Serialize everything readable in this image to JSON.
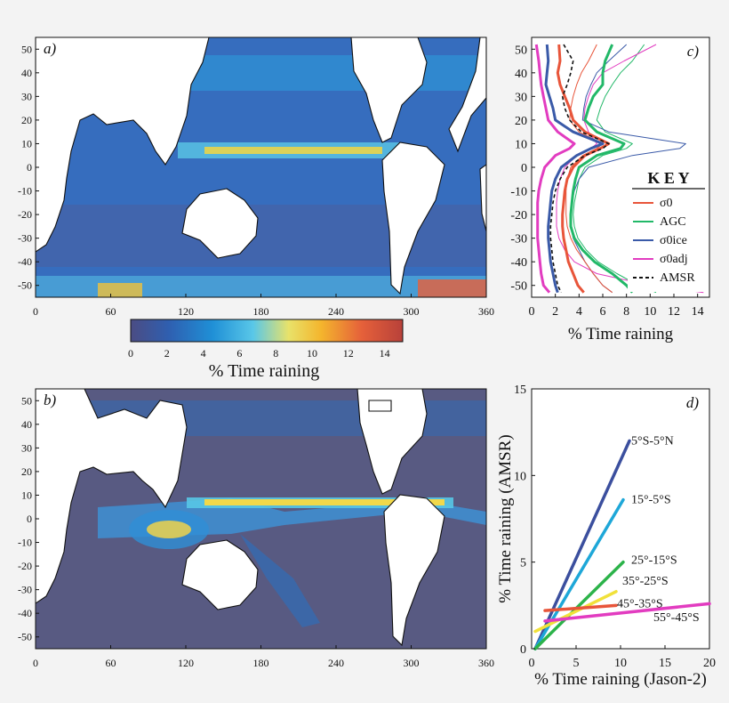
{
  "figure": {
    "panels": [
      {
        "label": "a)",
        "type": "heatmap",
        "x_ticks": [
          "0",
          "60",
          "120",
          "180",
          "240",
          "300",
          "360"
        ],
        "y_ticks": [
          "50",
          "40",
          "30",
          "20",
          "10",
          "0",
          "-10",
          "-20",
          "-30",
          "-40",
          "-50"
        ],
        "xlim": [
          0,
          360
        ],
        "ylim": [
          -55,
          55
        ]
      },
      {
        "label": "b)",
        "type": "heatmap",
        "x_ticks": [
          "0",
          "60",
          "120",
          "180",
          "240",
          "300",
          "360"
        ],
        "y_ticks": [
          "50",
          "40",
          "30",
          "20",
          "10",
          "0",
          "-10",
          "-20",
          "-30",
          "-40",
          "-50"
        ],
        "xlim": [
          0,
          360
        ],
        "ylim": [
          -55,
          55
        ]
      },
      {
        "label": "c)"
      },
      {
        "label": "d)"
      }
    ],
    "colorbar": {
      "ticks": [
        "0",
        "2",
        "4",
        "6",
        "8",
        "10",
        "12",
        "14"
      ],
      "label": "% Time raining",
      "range": [
        0,
        15
      ],
      "colors": [
        "#4b4c83",
        "#2f5fb0",
        "#1f8fd6",
        "#59c7e8",
        "#e8e26a",
        "#f4b52d",
        "#e5603a",
        "#b8413a"
      ]
    }
  },
  "chart_data": [
    {
      "type": "line",
      "panel": "c)",
      "xlabel": "% Time raining",
      "ylabel": "",
      "xlim": [
        0,
        15
      ],
      "ylim": [
        -55,
        55
      ],
      "x_ticks": [
        "0",
        "2",
        "4",
        "6",
        "8",
        "10",
        "12",
        "14"
      ],
      "y_ticks": [
        "50",
        "40",
        "30",
        "20",
        "10",
        "0",
        "-10",
        "-20",
        "-30",
        "-40",
        "-50"
      ],
      "legend": {
        "title": "K E Y",
        "position": "right",
        "entries": [
          {
            "label": "σ0",
            "color": "#e8553a"
          },
          {
            "label": "AGC",
            "color": "#22b868"
          },
          {
            "label": "σ0ice",
            "color": "#3a5aa8"
          },
          {
            "label": "σ0adj",
            "color": "#e23cc0"
          },
          {
            "label": "AMSR",
            "color": "#111111",
            "dash": true
          }
        ]
      },
      "y": [
        52,
        45,
        40,
        35,
        30,
        25,
        20,
        15,
        10,
        8,
        5,
        0,
        -5,
        -10,
        -15,
        -20,
        -25,
        -30,
        -35,
        -40,
        -45,
        -50,
        -53
      ],
      "series": [
        {
          "name": "σ0",
          "color": "#e8553a",
          "values": [
            2.3,
            2.4,
            2.2,
            2.4,
            2.8,
            3.2,
            3.5,
            4.5,
            6.5,
            5.8,
            4.5,
            3.5,
            3.0,
            2.8,
            2.7,
            2.6,
            2.6,
            2.7,
            2.9,
            3.1,
            3.5,
            3.9,
            4.4
          ],
          "width": 3
        },
        {
          "name": "AGC",
          "color": "#22b868",
          "values": [
            6.8,
            6.2,
            6.0,
            6.0,
            5.2,
            4.8,
            4.5,
            5.5,
            7.8,
            7.5,
            5.5,
            4.0,
            3.7,
            3.5,
            3.4,
            3.3,
            3.3,
            3.6,
            4.3,
            5.3,
            6.8,
            8.0,
            8.5
          ],
          "width": 3
        },
        {
          "name": "σ0ice",
          "color": "#3a5aa8",
          "values": [
            1.3,
            1.4,
            1.3,
            1.2,
            1.5,
            1.8,
            2.0,
            3.5,
            6.0,
            5.0,
            3.8,
            2.5,
            2.0,
            1.7,
            1.6,
            1.5,
            1.4,
            1.4,
            1.5,
            1.6,
            1.8,
            2.0,
            2.2
          ],
          "width": 3
        },
        {
          "name": "σ0adj",
          "color": "#e23cc0",
          "values": [
            0.4,
            0.6,
            0.7,
            0.8,
            1.0,
            1.2,
            1.4,
            2.2,
            3.6,
            3.2,
            2.0,
            1.1,
            0.8,
            0.6,
            0.5,
            0.5,
            0.5,
            0.5,
            0.6,
            0.7,
            0.8,
            1.0,
            1.5
          ],
          "width": 3
        },
        {
          "name": "AMSR",
          "color": "#111111",
          "dash": true,
          "values": [
            2.7,
            3.5,
            3.3,
            3.0,
            2.6,
            2.8,
            3.2,
            4.2,
            6.5,
            6.0,
            4.5,
            3.0,
            2.4,
            2.0,
            1.8,
            1.7,
            1.6,
            1.6,
            1.7,
            1.8,
            2.0,
            2.2,
            2.5
          ],
          "width": 1.6
        },
        {
          "name": "AGC",
          "color": "#22b868",
          "values": [
            9.5,
            8.5,
            7.5,
            6.8,
            6.2,
            5.8,
            5.5,
            6.2,
            8.5,
            8.0,
            6.0,
            4.5,
            4.0,
            3.8,
            3.6,
            3.5,
            3.6,
            3.9,
            4.6,
            5.6,
            7.2,
            9.0,
            10.5
          ],
          "width": 1
        },
        {
          "name": "σ0ice",
          "color": "#3a5aa8",
          "values": [
            8.0,
            6.5,
            5.5,
            5.0,
            4.6,
            4.4,
            4.3,
            6.5,
            13.0,
            12.5,
            8.5,
            4.8,
            4.0,
            3.6,
            3.4,
            3.3,
            3.3,
            3.5,
            4.0,
            4.5,
            5.2,
            6.0,
            6.8
          ],
          "width": 1
        },
        {
          "name": "σ0adj",
          "color": "#e23cc0",
          "values": [
            10.5,
            7.8,
            6.0,
            5.2,
            4.8,
            4.5,
            4.4,
            4.8,
            5.5,
            5.0,
            3.8,
            2.8,
            2.4,
            2.2,
            2.1,
            2.1,
            2.1,
            2.3,
            2.8,
            3.6,
            5.5,
            10.0,
            14.5
          ],
          "width": 1
        },
        {
          "name": "σ0",
          "color": "#e8553a",
          "values": [
            5.5,
            4.8,
            4.2,
            3.8,
            3.5,
            3.3,
            3.2,
            4.0,
            6.0,
            5.5,
            4.3,
            3.3,
            3.0,
            2.9,
            2.9,
            2.9,
            3.0,
            3.3,
            3.8,
            4.5,
            5.2,
            6.0,
            6.8
          ],
          "width": 1
        }
      ]
    },
    {
      "type": "line",
      "panel": "d)",
      "xlabel": "% Time raining (Jason-2)",
      "ylabel": "% Time raining (AMSR)",
      "xlim": [
        0,
        20
      ],
      "ylim": [
        0,
        15
      ],
      "x_ticks": [
        "0",
        "5",
        "10",
        "15",
        "20"
      ],
      "y_ticks": [
        "0",
        "5",
        "10",
        "15"
      ],
      "series": [
        {
          "name": "5°S-5°N",
          "color": "#3b4f9e",
          "x": [
            0.4,
            11.0
          ],
          "values": [
            0.0,
            12.0
          ],
          "label_at": [
            11.2,
            11.8
          ]
        },
        {
          "name": "15°-5°S",
          "color": "#1ea7d8",
          "x": [
            0.4,
            10.3
          ],
          "values": [
            0.0,
            8.6
          ],
          "label_at": [
            11.2,
            8.4
          ]
        },
        {
          "name": "25°-15°S",
          "color": "#2cb34a",
          "x": [
            0.4,
            10.3
          ],
          "values": [
            0.0,
            5.0
          ],
          "label_at": [
            11.2,
            4.9
          ]
        },
        {
          "name": "35°-25°S",
          "color": "#f1e13a",
          "x": [
            0.4,
            9.5
          ],
          "values": [
            1.0,
            3.3
          ],
          "label_at": [
            10.2,
            3.7
          ]
        },
        {
          "name": "45°-35°S",
          "color": "#e8553a",
          "x": [
            1.5,
            9.5
          ],
          "values": [
            2.2,
            2.5
          ],
          "label_at": [
            9.6,
            2.4
          ]
        },
        {
          "name": "55°-45°S",
          "color": "#e23cc0",
          "x": [
            1.5,
            20.0
          ],
          "values": [
            1.6,
            2.6
          ],
          "label_at": [
            13.7,
            1.6
          ]
        }
      ]
    }
  ]
}
